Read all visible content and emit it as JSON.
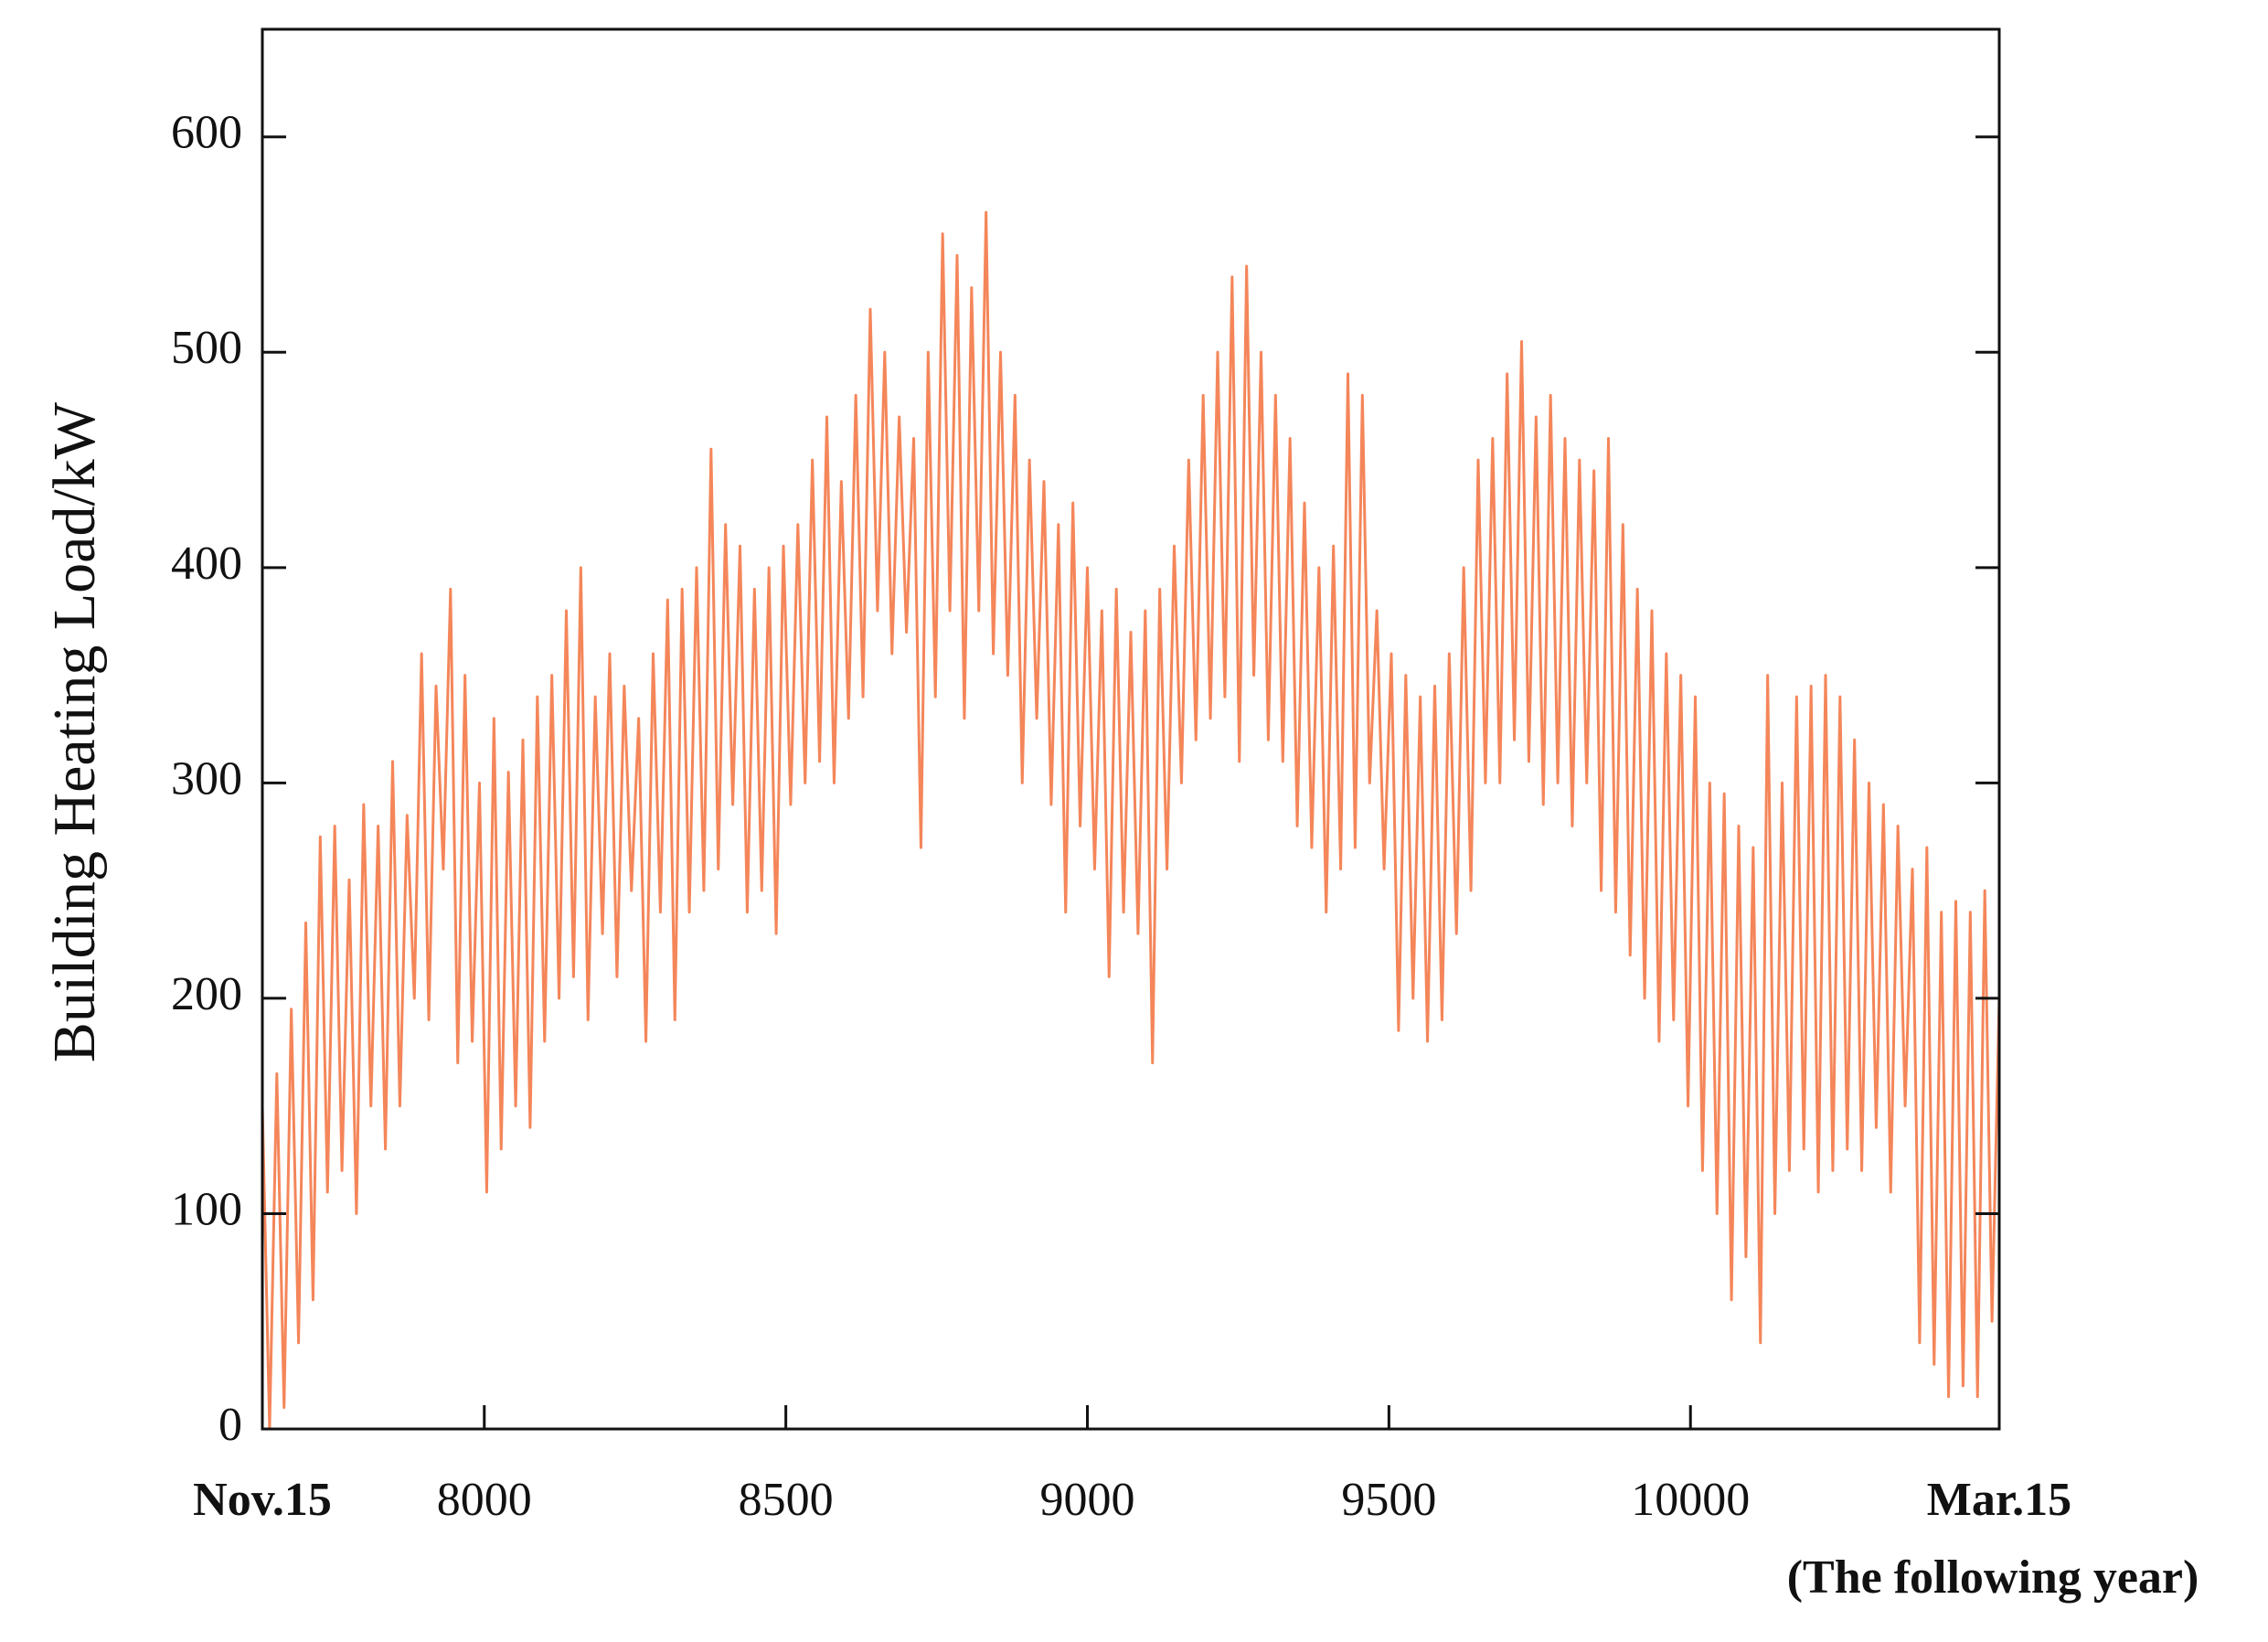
{
  "chart_data": {
    "type": "line",
    "ylabel": "Building Heating Load/kW",
    "annotation": "(The following year)",
    "xlim": [
      7632,
      10512
    ],
    "ylim": [
      0,
      650
    ],
    "xticks": [
      {
        "value": 7632,
        "label": "Nov.15"
      },
      8000,
      8500,
      9000,
      9500,
      10000,
      {
        "value": 10512,
        "label": "Mar.15"
      }
    ],
    "yticks": [
      0,
      100,
      200,
      300,
      400,
      500,
      600
    ],
    "grid": false,
    "x": [
      7632,
      7644,
      7656,
      7668,
      7680,
      7692,
      7704,
      7716,
      7728,
      7740,
      7752,
      7764,
      7776,
      7788,
      7800,
      7812,
      7824,
      7836,
      7848,
      7860,
      7872,
      7884,
      7896,
      7908,
      7920,
      7932,
      7944,
      7956,
      7968,
      7980,
      7992,
      8004,
      8016,
      8028,
      8040,
      8052,
      8064,
      8076,
      8088,
      8100,
      8112,
      8124,
      8136,
      8148,
      8160,
      8172,
      8184,
      8196,
      8208,
      8220,
      8232,
      8244,
      8256,
      8268,
      8280,
      8292,
      8304,
      8316,
      8328,
      8340,
      8352,
      8364,
      8376,
      8388,
      8400,
      8412,
      8424,
      8436,
      8448,
      8460,
      8472,
      8484,
      8496,
      8508,
      8520,
      8532,
      8544,
      8556,
      8568,
      8580,
      8592,
      8604,
      8616,
      8628,
      8640,
      8652,
      8664,
      8676,
      8688,
      8700,
      8712,
      8724,
      8736,
      8748,
      8760,
      8772,
      8784,
      8796,
      8808,
      8820,
      8832,
      8844,
      8856,
      8868,
      8880,
      8892,
      8904,
      8916,
      8928,
      8940,
      8952,
      8964,
      8976,
      8988,
      9000,
      9012,
      9024,
      9036,
      9048,
      9060,
      9072,
      9084,
      9096,
      9108,
      9120,
      9132,
      9144,
      9156,
      9168,
      9180,
      9192,
      9204,
      9216,
      9228,
      9240,
      9252,
      9264,
      9276,
      9288,
      9300,
      9312,
      9324,
      9336,
      9348,
      9360,
      9372,
      9384,
      9396,
      9408,
      9420,
      9432,
      9444,
      9456,
      9468,
      9480,
      9492,
      9504,
      9516,
      9528,
      9540,
      9552,
      9564,
      9576,
      9588,
      9600,
      9612,
      9624,
      9636,
      9648,
      9660,
      9672,
      9684,
      9696,
      9708,
      9720,
      9732,
      9744,
      9756,
      9768,
      9780,
      9792,
      9804,
      9816,
      9828,
      9840,
      9852,
      9864,
      9876,
      9888,
      9900,
      9912,
      9924,
      9936,
      9948,
      9960,
      9972,
      9984,
      9996,
      10008,
      10020,
      10032,
      10044,
      10056,
      10068,
      10080,
      10092,
      10104,
      10116,
      10128,
      10140,
      10152,
      10164,
      10176,
      10188,
      10200,
      10212,
      10224,
      10236,
      10248,
      10260,
      10272,
      10284,
      10296,
      10308,
      10320,
      10332,
      10344,
      10356,
      10368,
      10380,
      10392,
      10404,
      10416,
      10428,
      10440,
      10452,
      10464,
      10476,
      10488,
      10500,
      10512
    ],
    "series": [
      {
        "color": "#f4865a",
        "values": [
          150,
          0,
          165,
          10,
          195,
          40,
          235,
          60,
          275,
          110,
          280,
          120,
          255,
          100,
          290,
          150,
          280,
          130,
          310,
          150,
          285,
          200,
          360,
          190,
          345,
          260,
          390,
          170,
          350,
          180,
          300,
          110,
          330,
          130,
          305,
          150,
          320,
          140,
          340,
          180,
          350,
          200,
          380,
          210,
          400,
          190,
          340,
          230,
          360,
          210,
          345,
          250,
          330,
          180,
          360,
          240,
          385,
          190,
          390,
          240,
          400,
          250,
          455,
          260,
          420,
          290,
          410,
          240,
          390,
          250,
          400,
          230,
          410,
          290,
          420,
          300,
          450,
          310,
          470,
          300,
          440,
          330,
          480,
          340,
          520,
          380,
          500,
          360,
          470,
          370,
          460,
          270,
          500,
          340,
          555,
          380,
          545,
          330,
          530,
          380,
          565,
          360,
          500,
          350,
          480,
          300,
          450,
          330,
          440,
          290,
          420,
          240,
          430,
          280,
          400,
          260,
          380,
          210,
          390,
          240,
          370,
          230,
          380,
          170,
          390,
          260,
          410,
          300,
          450,
          320,
          480,
          330,
          500,
          340,
          535,
          310,
          540,
          350,
          500,
          320,
          480,
          310,
          460,
          280,
          430,
          270,
          400,
          240,
          410,
          260,
          490,
          270,
          480,
          300,
          380,
          260,
          360,
          185,
          350,
          200,
          340,
          180,
          345,
          190,
          360,
          230,
          400,
          250,
          450,
          300,
          460,
          300,
          490,
          320,
          505,
          310,
          470,
          290,
          480,
          300,
          460,
          280,
          450,
          300,
          445,
          250,
          460,
          240,
          420,
          220,
          390,
          200,
          380,
          180,
          360,
          190,
          350,
          150,
          340,
          120,
          300,
          100,
          295,
          60,
          280,
          80,
          270,
          40,
          350,
          100,
          300,
          120,
          340,
          130,
          345,
          110,
          350,
          120,
          340,
          130,
          320,
          120,
          300,
          140,
          290,
          110,
          280,
          150,
          260,
          40,
          270,
          30,
          240,
          15,
          245,
          20,
          240,
          15,
          250,
          50,
          200
        ]
      }
    ]
  }
}
